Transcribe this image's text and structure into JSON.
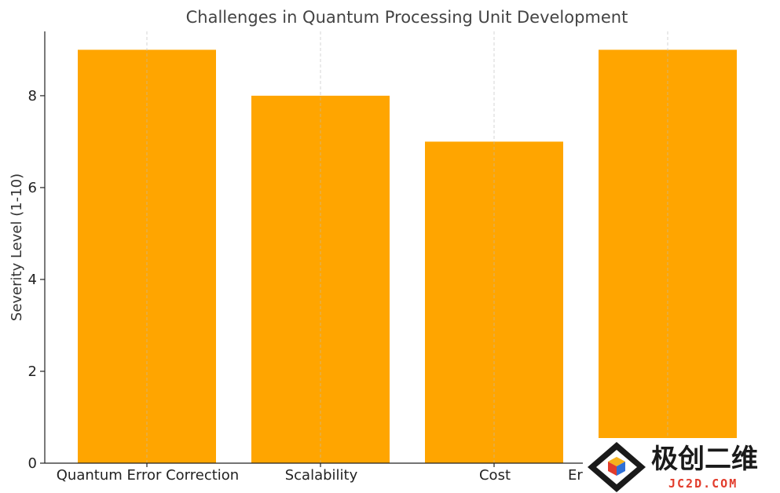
{
  "chart_data": {
    "type": "bar",
    "title": "Challenges in Quantum Processing Unit Development",
    "xlabel": "",
    "ylabel": "Severity Level (1-10)",
    "categories": [
      "Quantum Error Correction",
      "Scalability",
      "Cost",
      "Er"
    ],
    "values": [
      9,
      8,
      7,
      9
    ],
    "ylim": [
      0,
      9.4
    ],
    "yticks": [
      0,
      2,
      4,
      6,
      8
    ],
    "grid": {
      "x": true,
      "y": false
    },
    "bar_color": "#FFA500"
  },
  "watermark": {
    "text_cn": "极创二维",
    "text_en": "JC2D.COM"
  }
}
